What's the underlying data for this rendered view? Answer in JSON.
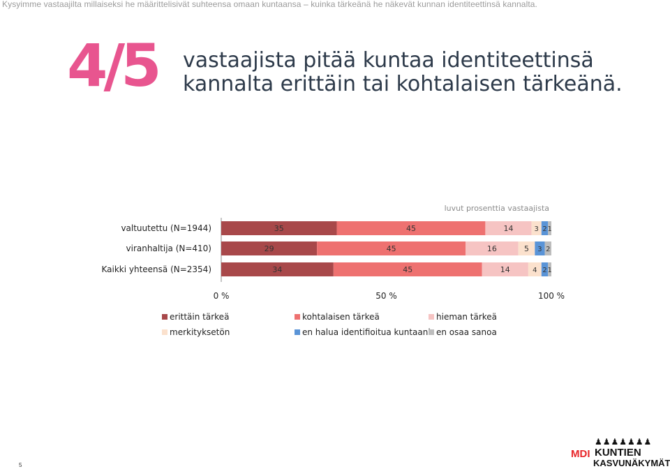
{
  "page": {
    "caption": "Kysyimme vastaajilta millaiseksi he määrittelisivät suhteensa omaan kuntaansa – kuinka tärkeänä he näkevät kunnan identiteettinsä kannalta.",
    "big_fraction": "4/5",
    "headline_line1": "vastaajista pitää kuntaa identiteettinsä",
    "headline_line2": "kannalta erittäin tai kohtalaisen tärkeänä.",
    "page_number": "5"
  },
  "logo": {
    "mdi": "MDI",
    "line1": "KUNTIEN",
    "line2": "KASVUNÄKYMÄT"
  },
  "chart_data": {
    "type": "bar",
    "orientation": "horizontal",
    "stacked": "100%",
    "note": "luvut prosenttia vastaajista",
    "categories": [
      "valtuutettu (N=1944)",
      "viranhaltija (N=410)",
      "Kaikki yhteensä (N=2354)"
    ],
    "series": [
      {
        "name": "erittäin tärkeä",
        "color": "#a8484a",
        "values": [
          35,
          29,
          34
        ]
      },
      {
        "name": "kohtalaisen tärkeä",
        "color": "#ee7170",
        "values": [
          45,
          45,
          45
        ]
      },
      {
        "name": "hieman tärkeä",
        "color": "#f6c4c3",
        "values": [
          14,
          16,
          14
        ]
      },
      {
        "name": "merkityksetön",
        "color": "#fbe1cd",
        "values": [
          3,
          5,
          4
        ]
      },
      {
        "name": "en halua identifioitua kuntaani",
        "color": "#5a94d7",
        "values": [
          2,
          3,
          2
        ]
      },
      {
        "name": "en osaa sanoa",
        "color": "#bdbdbd",
        "values": [
          1,
          2,
          1
        ]
      }
    ],
    "xlim": [
      0,
      100
    ],
    "xticks": [
      "0 %",
      "50 %",
      "100 %"
    ],
    "legend_position": "bottom"
  }
}
